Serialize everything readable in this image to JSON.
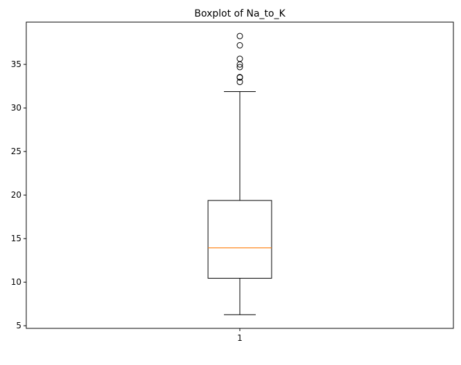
{
  "chart_data": {
    "type": "boxplot",
    "title": "Boxplot of Na_to_K",
    "xlabel": "",
    "ylabel": "",
    "categories": [
      "1"
    ],
    "series": [
      {
        "whisker_low": 6.27,
        "q1": 10.45,
        "median": 13.94,
        "q3": 19.38,
        "whisker_high": 31.88,
        "outliers": [
          38.25,
          37.19,
          35.64,
          34.99,
          34.69,
          33.54,
          33.49,
          32.98
        ]
      }
    ],
    "ylim": [
      4.7,
      39.85
    ],
    "yticks": [
      5,
      10,
      15,
      20,
      25,
      30,
      35
    ],
    "grid": false,
    "colors": {
      "box": "#000000",
      "median": "#ff7f0e",
      "outlier": "#000000"
    }
  }
}
